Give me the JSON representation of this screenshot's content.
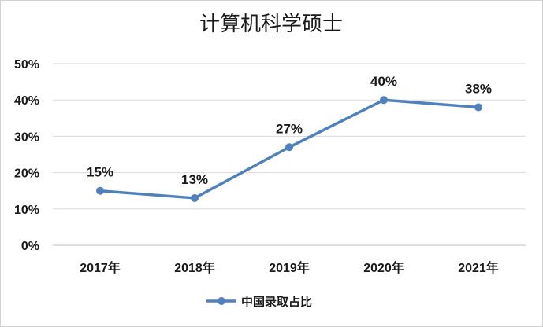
{
  "chart_data": {
    "type": "line",
    "title": "计算机科学硕士",
    "categories": [
      "2017年",
      "2018年",
      "2019年",
      "2020年",
      "2021年"
    ],
    "series": [
      {
        "name": "中国录取占比",
        "values": [
          15,
          13,
          27,
          40,
          38
        ],
        "data_labels": [
          "15%",
          "13%",
          "27%",
          "40%",
          "38%"
        ],
        "color": "#4f81bd"
      }
    ],
    "y_ticks": [
      "0%",
      "10%",
      "20%",
      "30%",
      "40%",
      "50%"
    ],
    "ylim": [
      0,
      50
    ],
    "grid": true,
    "legend_position": "bottom"
  }
}
